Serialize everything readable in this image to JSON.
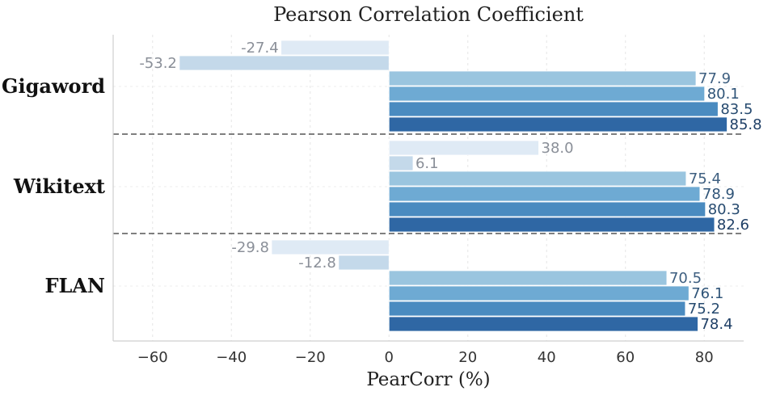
{
  "chart_data": {
    "type": "bar",
    "orientation": "horizontal",
    "title": "Pearson Correlation Coefficient",
    "xlabel": "PearCorr (%)",
    "ylabel": "",
    "xlim": [
      -70,
      90
    ],
    "xticks": [
      -60,
      -40,
      -20,
      0,
      20,
      40,
      60,
      80
    ],
    "xtick_labels": [
      "−60",
      "−40",
      "−20",
      "0",
      "20",
      "40",
      "60",
      "80"
    ],
    "grid": true,
    "legend": "none",
    "categories": [
      "Gigaword",
      "Wikitext",
      "FLAN"
    ],
    "bar_colors": [
      "#dfeaf5",
      "#c4d9ea",
      "#9ac5df",
      "#6eaad3",
      "#4a8bc0",
      "#2f67a4"
    ],
    "label_colors": [
      "#8a8f98",
      "#8a8f98",
      "#3e5f80",
      "#2f5478",
      "#274b70",
      "#1f3f66"
    ],
    "groups": [
      {
        "category": "Gigaword",
        "values": [
          -27.4,
          -53.2,
          77.9,
          80.1,
          83.5,
          85.8
        ],
        "labels": [
          "-27.4",
          "-53.2",
          "77.9",
          "80.1",
          "83.5",
          "85.8"
        ]
      },
      {
        "category": "Wikitext",
        "values": [
          38.0,
          6.1,
          75.4,
          78.9,
          80.3,
          82.6
        ],
        "labels": [
          "38.0",
          "6.1",
          "75.4",
          "78.9",
          "80.3",
          "82.6"
        ]
      },
      {
        "category": "FLAN",
        "values": [
          -29.8,
          -12.8,
          70.5,
          76.1,
          75.2,
          78.4
        ],
        "labels": [
          "-29.8",
          "-12.8",
          "70.5",
          "76.1",
          "75.2",
          "78.4"
        ]
      }
    ]
  }
}
